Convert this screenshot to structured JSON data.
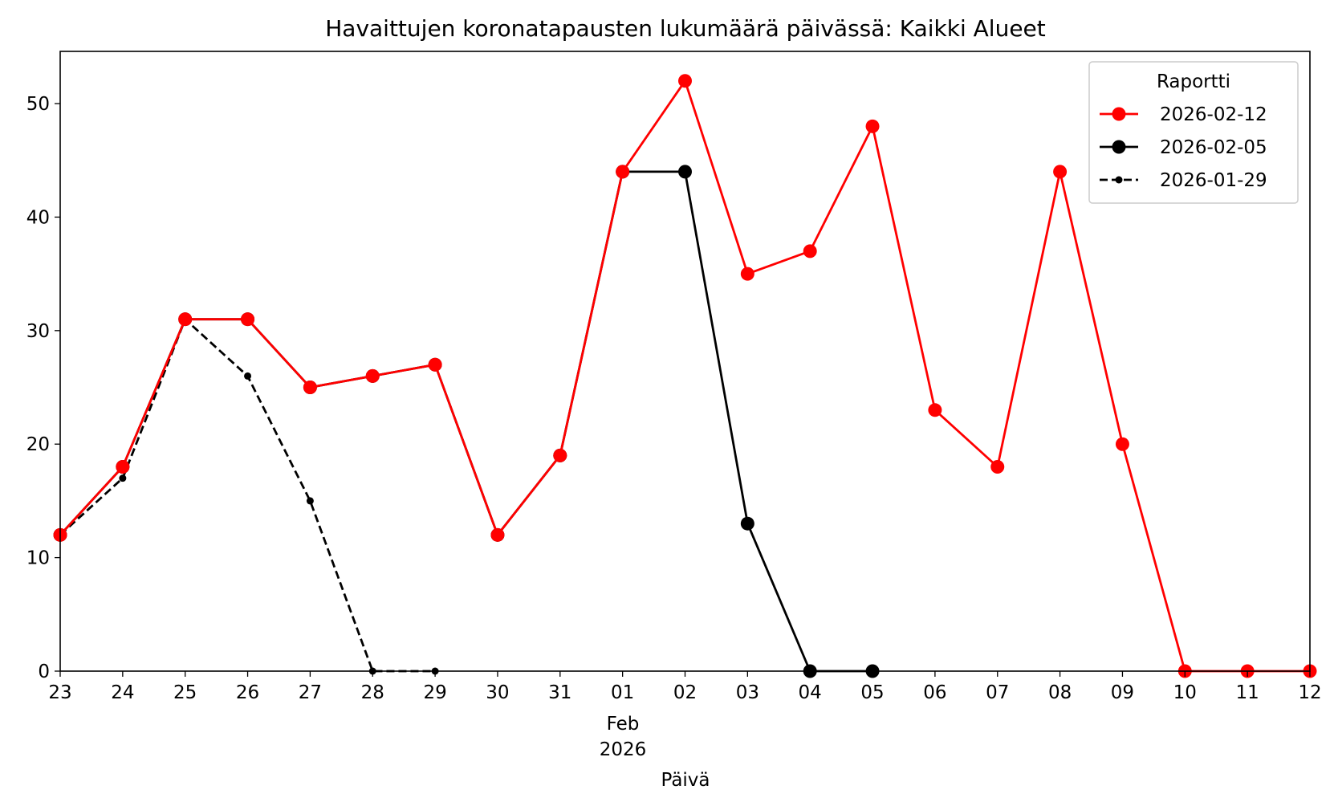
{
  "chart_data": {
    "type": "line",
    "title": "Havaittujen koronatapausten lukumäärä päivässä: Kaikki Alueet",
    "xlabel": "Päivä",
    "ylabel": "",
    "x_range": [
      "2026-01-23",
      "2026-02-12"
    ],
    "ylim": [
      0,
      54.6
    ],
    "y_ticks": [
      0,
      10,
      20,
      30,
      40,
      50
    ],
    "x_tick_labels": [
      "23",
      "24",
      "25",
      "26",
      "27",
      "28",
      "29",
      "30",
      "31",
      "01",
      "02",
      "03",
      "04",
      "05",
      "06",
      "07",
      "08",
      "09",
      "10",
      "11",
      "12"
    ],
    "x_month_label": "Feb",
    "x_year_label": "2026",
    "grid": false,
    "legend": {
      "title": "Raportti",
      "placement": "top-right"
    },
    "series": [
      {
        "name": "2026-02-12",
        "color": "#ff0000",
        "style": "solid-large-marker",
        "x": [
          "2026-01-23",
          "2026-01-24",
          "2026-01-25",
          "2026-01-26",
          "2026-01-27",
          "2026-01-28",
          "2026-01-29",
          "2026-01-30",
          "2026-01-31",
          "2026-02-01",
          "2026-02-02",
          "2026-02-03",
          "2026-02-04",
          "2026-02-05",
          "2026-02-06",
          "2026-02-07",
          "2026-02-08",
          "2026-02-09",
          "2026-02-10",
          "2026-02-11",
          "2026-02-12"
        ],
        "values": [
          12,
          18,
          31,
          31,
          25,
          26,
          27,
          12,
          19,
          44,
          52,
          35,
          37,
          48,
          23,
          18,
          44,
          20,
          0,
          0,
          0
        ]
      },
      {
        "name": "2026-02-05",
        "color": "#000000",
        "style": "solid-large-marker",
        "x": [
          "2026-01-23",
          "2026-01-24",
          "2026-01-25",
          "2026-01-26",
          "2026-01-27",
          "2026-01-28",
          "2026-01-29",
          "2026-01-30",
          "2026-01-31",
          "2026-02-01",
          "2026-02-02",
          "2026-02-03",
          "2026-02-04",
          "2026-02-05"
        ],
        "values": [
          12,
          18,
          31,
          31,
          25,
          26,
          27,
          12,
          19,
          44,
          44,
          13,
          0,
          0
        ]
      },
      {
        "name": "2026-01-29",
        "color": "#000000",
        "style": "dashed-small-marker",
        "x": [
          "2026-01-23",
          "2026-01-24",
          "2026-01-25",
          "2026-01-26",
          "2026-01-27",
          "2026-01-28",
          "2026-01-29"
        ],
        "values": [
          12,
          17,
          31,
          26,
          15,
          0,
          0
        ]
      }
    ]
  }
}
